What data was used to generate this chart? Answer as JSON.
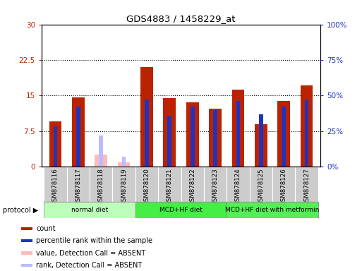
{
  "title": "GDS4883 / 1458229_at",
  "samples": [
    "GSM878116",
    "GSM878117",
    "GSM878118",
    "GSM878119",
    "GSM878120",
    "GSM878121",
    "GSM878122",
    "GSM878123",
    "GSM878124",
    "GSM878125",
    "GSM878126",
    "GSM878127"
  ],
  "count_values": [
    9.5,
    14.6,
    null,
    null,
    21.0,
    14.5,
    13.6,
    12.2,
    16.2,
    9.0,
    13.8,
    17.2
  ],
  "percentile_values": [
    28.5,
    42.0,
    null,
    null,
    47.0,
    36.0,
    42.0,
    40.0,
    46.0,
    37.0,
    42.0,
    47.0
  ],
  "absent_count_values": [
    null,
    null,
    2.5,
    0.9,
    null,
    null,
    null,
    null,
    null,
    null,
    null,
    null
  ],
  "absent_percentile_values": [
    null,
    null,
    22.0,
    7.0,
    null,
    null,
    null,
    null,
    null,
    null,
    null,
    null
  ],
  "ylim_left": [
    0,
    30
  ],
  "ylim_right": [
    0,
    100
  ],
  "yticks_left": [
    0,
    7.5,
    15,
    22.5,
    30
  ],
  "yticks_right": [
    0,
    25,
    50,
    75,
    100
  ],
  "yticklabels_left": [
    "0",
    "7.5",
    "15",
    "22.5",
    "30"
  ],
  "yticklabels_right": [
    "0%",
    "25%",
    "50%",
    "75%",
    "100%"
  ],
  "color_count": "#bb2200",
  "color_percentile": "#2233bb",
  "color_absent_count": "#ffbbbb",
  "color_absent_percentile": "#bbbbff",
  "bg_color": "#cccccc",
  "protocol_normal_color": "#bbffbb",
  "protocol_mcd_color": "#44ee44",
  "protocol_metformin_color": "#55ee55",
  "protocols": [
    {
      "label": "normal diet",
      "xstart": -0.5,
      "xend": 3.5,
      "color": "#bbffbb"
    },
    {
      "label": "MCD+HF diet",
      "xstart": 3.5,
      "xend": 7.5,
      "color": "#44ee44"
    },
    {
      "label": "MCD+HF diet with metformin",
      "xstart": 7.5,
      "xend": 11.5,
      "color": "#55ee55"
    }
  ]
}
